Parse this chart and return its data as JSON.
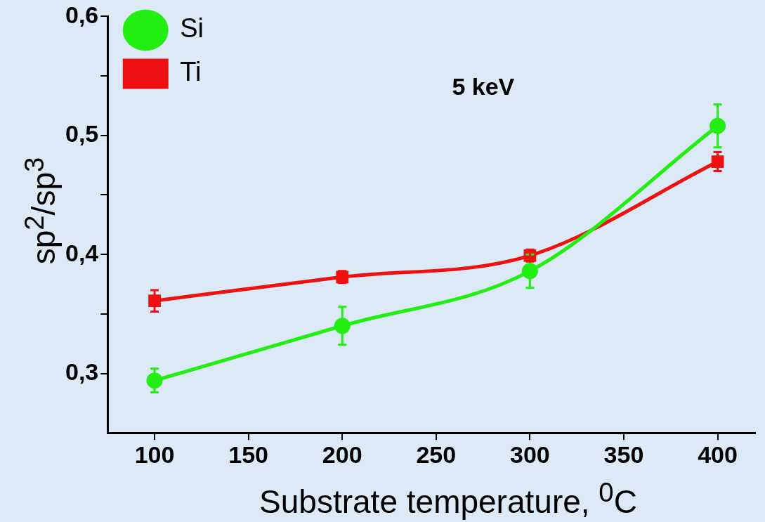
{
  "chart_data": {
    "type": "line",
    "xlabel": "Substrate temperature, $^{0}$C",
    "ylabel": "sp$^{2}$/sp$^{3}$",
    "annotations": [
      "5 keV"
    ],
    "x": [
      100,
      200,
      300,
      400
    ],
    "series": [
      {
        "name": "Si",
        "color": "#22ee11",
        "marker": "circle",
        "values": [
          0.294,
          0.34,
          0.386,
          0.508
        ],
        "errors": [
          0.01,
          0.016,
          0.014,
          0.018
        ]
      },
      {
        "name": "Ti",
        "color": "#ee1111",
        "marker": "square",
        "values": [
          0.361,
          0.381,
          0.399,
          0.478
        ],
        "errors": [
          0.009,
          0.005,
          0.005,
          0.008
        ]
      }
    ],
    "xlim": [
      75,
      420
    ],
    "xticks": [
      100,
      150,
      200,
      250,
      300,
      350,
      400
    ],
    "ylim": [
      0.25,
      0.6
    ],
    "yticks": [
      {
        "value": 0.3,
        "label": "0,3"
      },
      {
        "value": 0.35,
        "label": null
      },
      {
        "value": 0.4,
        "label": "0,4"
      },
      {
        "value": 0.45,
        "label": null
      },
      {
        "value": 0.5,
        "label": "0,5"
      },
      {
        "value": 0.55,
        "label": null
      },
      {
        "value": 0.6,
        "label": "0,6"
      }
    ],
    "grid": false,
    "legend": "top left",
    "line_style": "solid"
  }
}
